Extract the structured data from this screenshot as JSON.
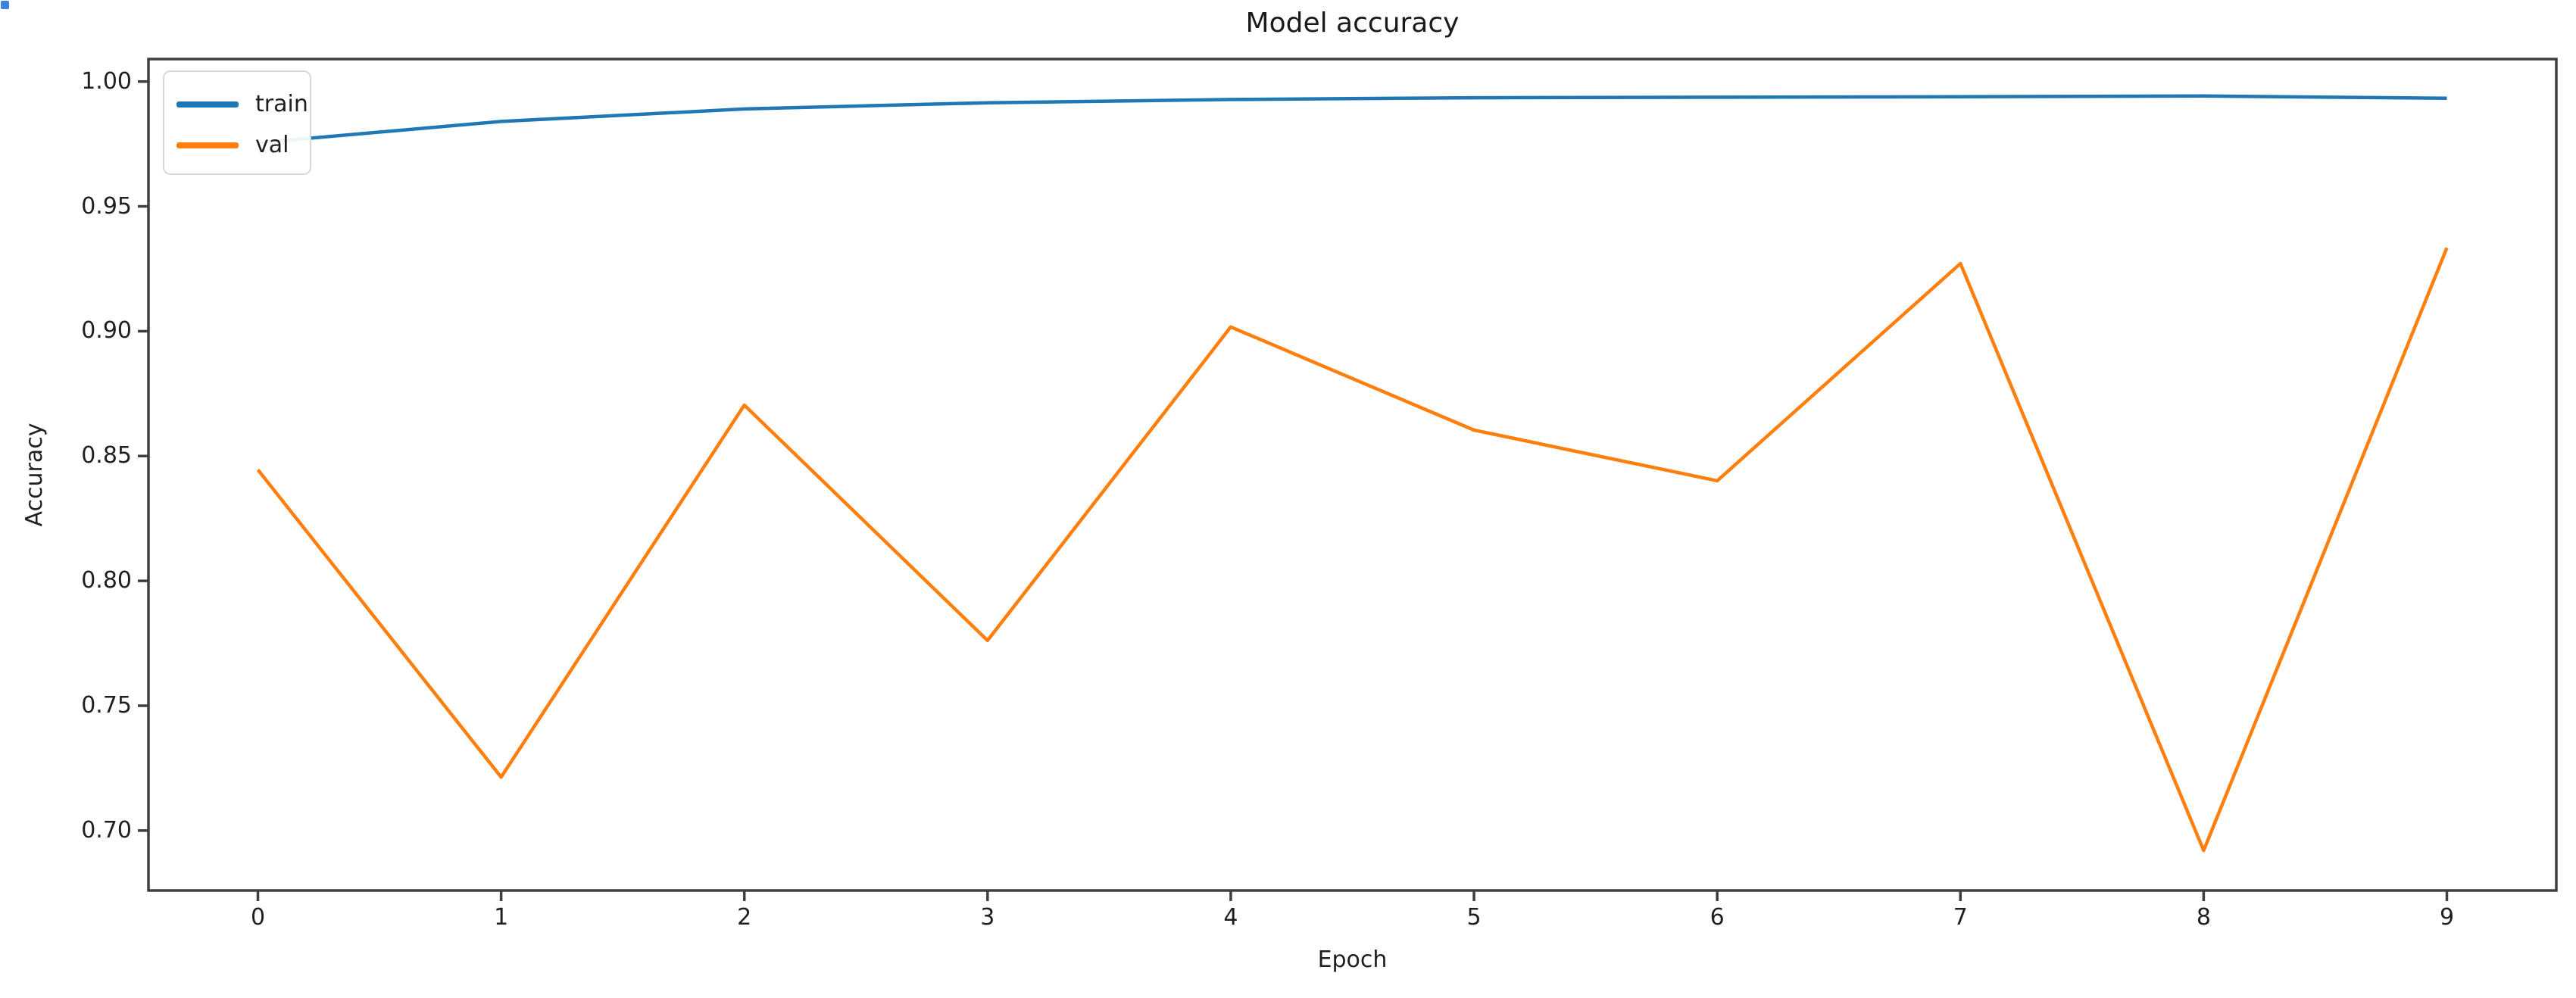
{
  "figure": {
    "background": "#ffffff"
  },
  "selection_handle": {
    "color": "#3e83db"
  },
  "colors": {
    "spine": "#3f3f3f",
    "tick": "#3f3f3f",
    "text": "#1f1f1f",
    "legend_border": "#d8d8d8",
    "train": "#1f77b4",
    "val": "#ff7f0e"
  },
  "chart_data": {
    "type": "line",
    "title": "Model accuracy",
    "xlabel": "Epoch",
    "ylabel": "Accuracy",
    "x": [
      0,
      1,
      2,
      3,
      4,
      5,
      6,
      7,
      8,
      9
    ],
    "series": [
      {
        "name": "train",
        "color": "#1f77b4",
        "values": [
          0.9755,
          0.984,
          0.989,
          0.9915,
          0.9928,
          0.9935,
          0.9937,
          0.9939,
          0.9942,
          0.9933
        ]
      },
      {
        "name": "val",
        "color": "#ff7f0e",
        "values": [
          0.8445,
          0.7214,
          0.8704,
          0.7761,
          0.9017,
          0.8604,
          0.8401,
          0.9271,
          0.692,
          0.9334
        ]
      }
    ],
    "xlim": [
      -0.45,
      9.45
    ],
    "ylim": [
      0.676,
      1.009
    ],
    "x_ticks": {
      "labels": [
        "0",
        "1",
        "2",
        "3",
        "4",
        "5",
        "6",
        "7",
        "8",
        "9"
      ],
      "values": [
        0,
        1,
        2,
        3,
        4,
        5,
        6,
        7,
        8,
        9
      ]
    },
    "y_ticks": {
      "labels": [
        "1.00",
        "0.95",
        "0.90",
        "0.85",
        "0.80",
        "0.75",
        "0.70"
      ],
      "values": [
        1.0,
        0.95,
        0.9,
        0.85,
        0.8,
        0.75,
        0.7
      ]
    },
    "grid": false,
    "legend": {
      "position": "upper left",
      "entries": [
        "train",
        "val"
      ]
    }
  }
}
